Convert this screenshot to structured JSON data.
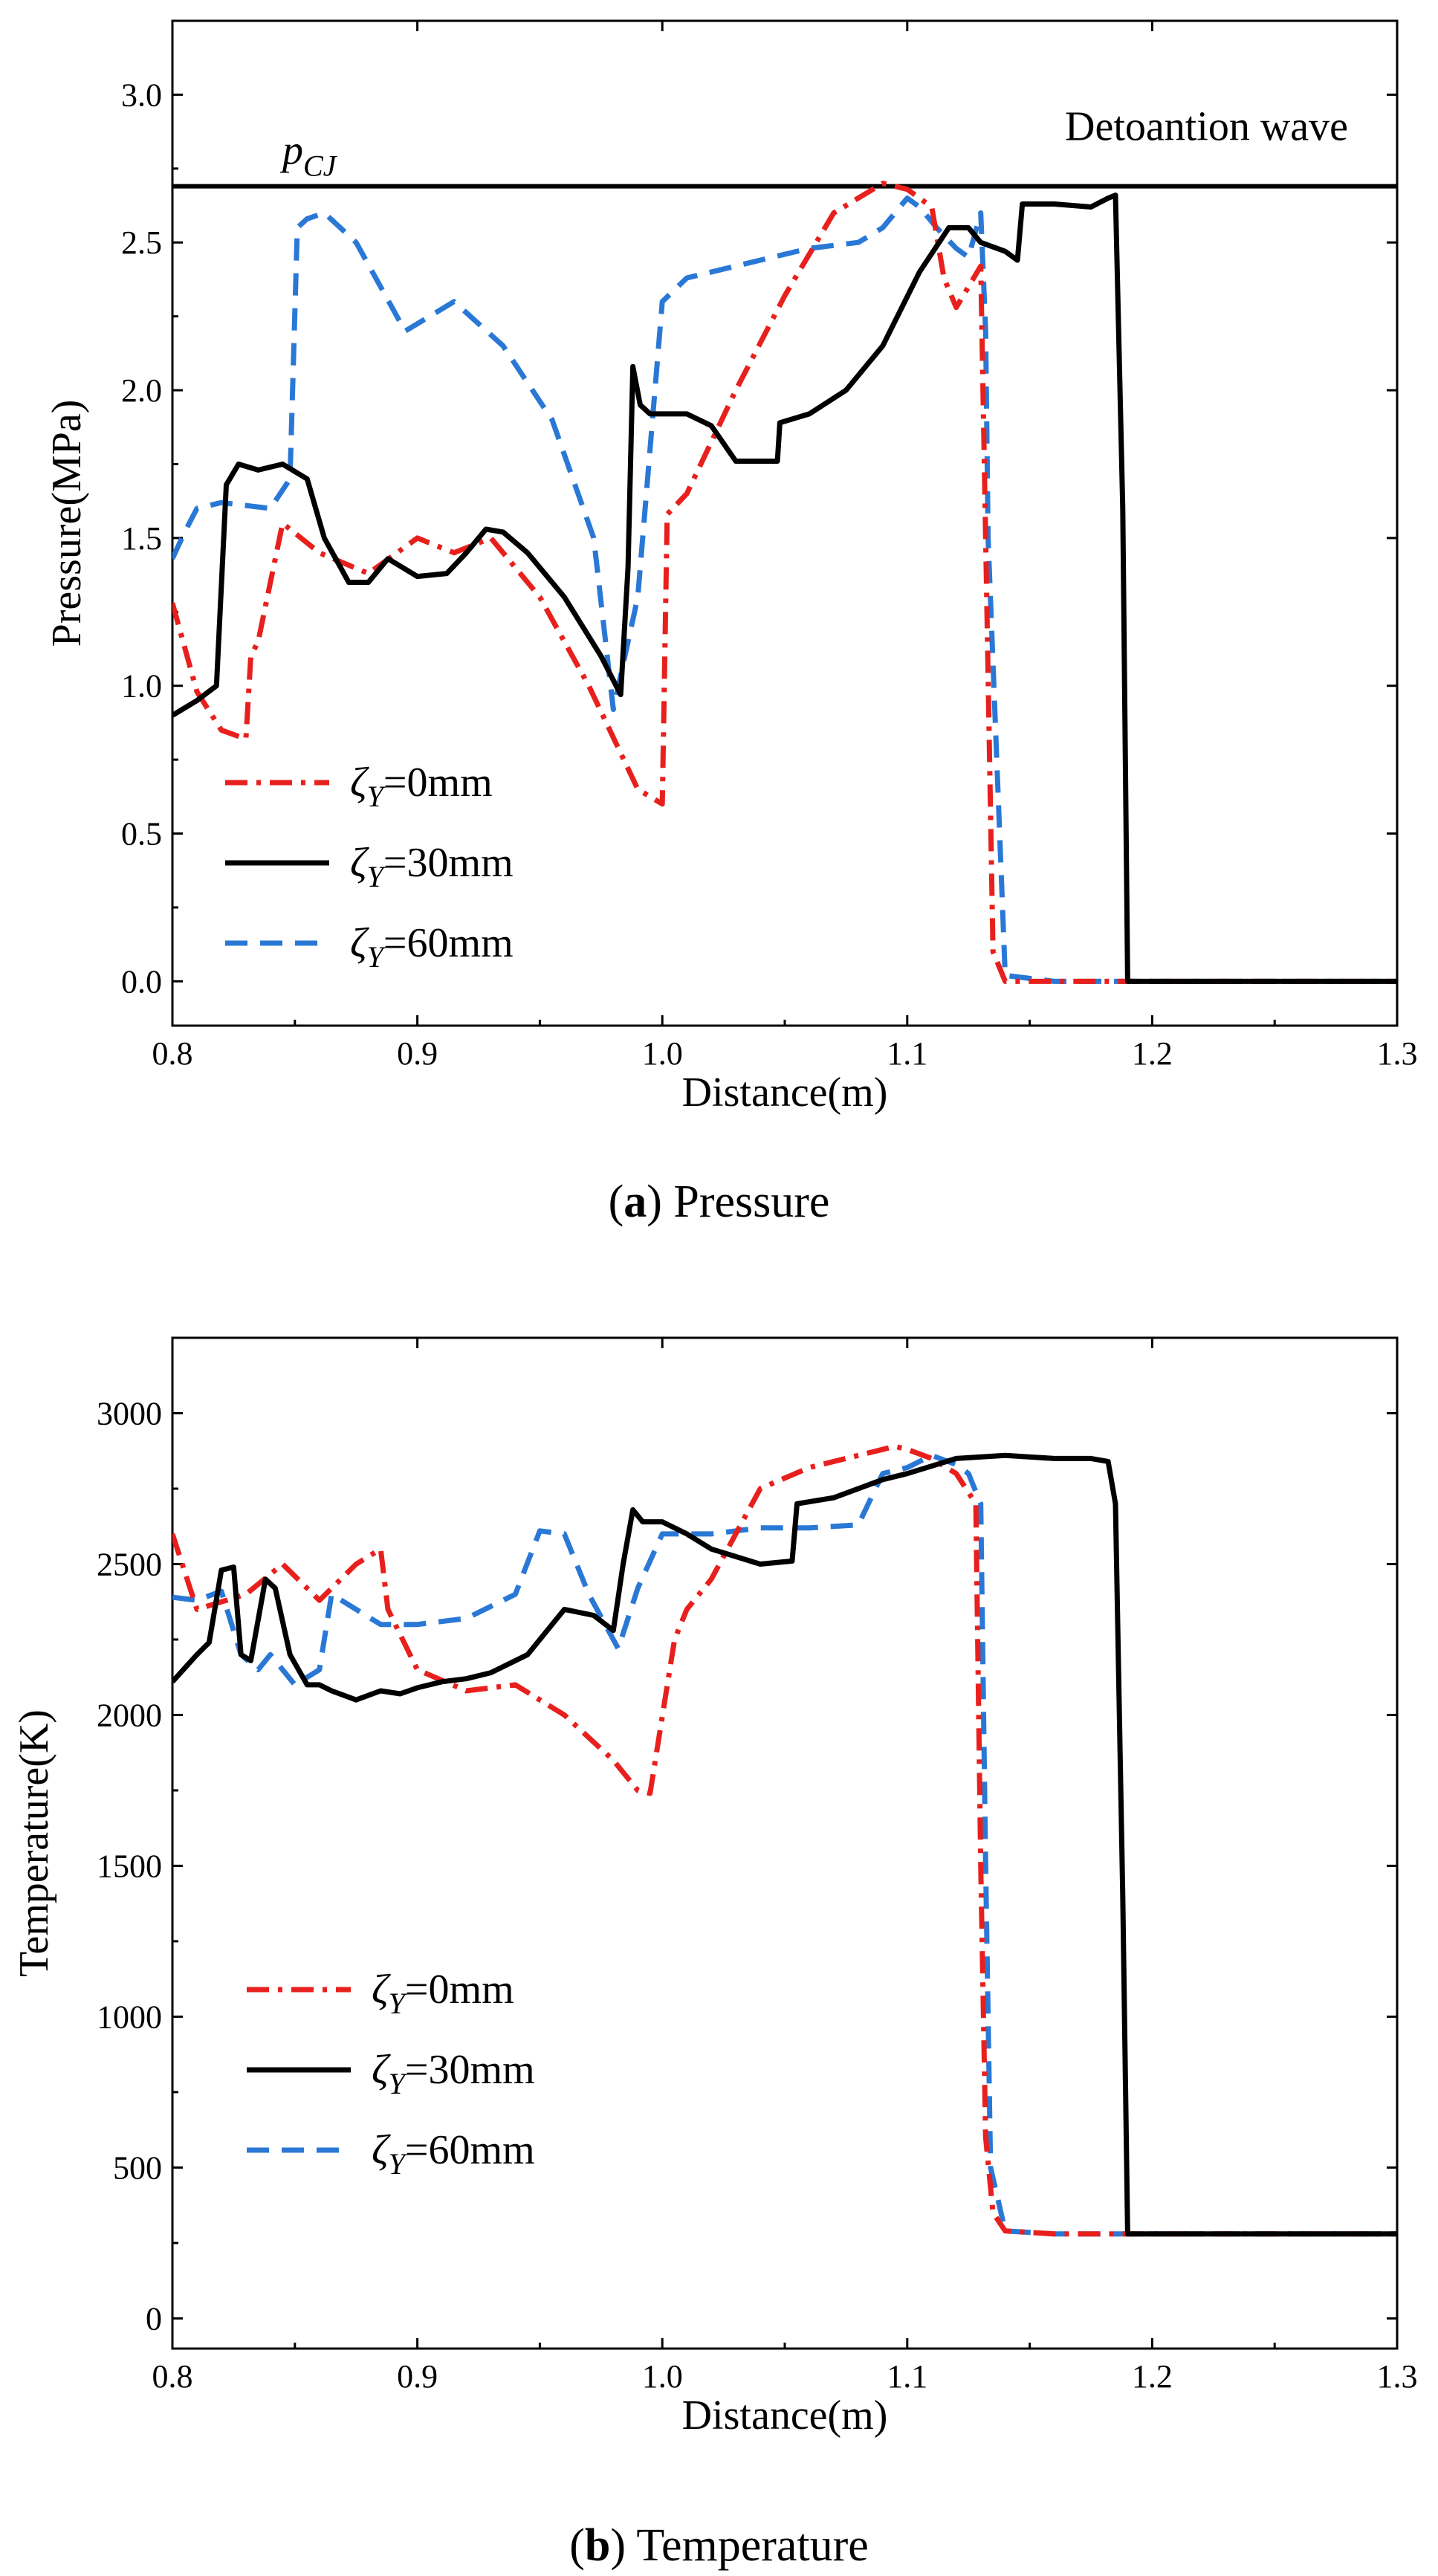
{
  "colors": {
    "red": "#e8201d",
    "black": "#000000",
    "blue": "#2a78d6"
  },
  "chart_data": [
    {
      "type": "line",
      "caption_letter": "a",
      "caption_text": ") Pressure",
      "xlabel": "Distance(m)",
      "ylabel": "Pressure(MPa)",
      "xlim": [
        0.8,
        1.3
      ],
      "ylim": [
        -0.15,
        3.25
      ],
      "xticks": [
        0.8,
        0.9,
        1.0,
        1.1,
        1.2,
        1.3
      ],
      "xtick_labels": [
        "0.8",
        "0.9",
        "1.0",
        "1.1",
        "1.2",
        "1.3"
      ],
      "yticks": [
        0.0,
        0.5,
        1.0,
        1.5,
        2.0,
        2.5,
        3.0
      ],
      "ytick_labels": [
        "0.0",
        "0.5",
        "1.0",
        "1.5",
        "2.0",
        "2.5",
        "3.0"
      ],
      "reference_line": {
        "y": 2.69,
        "label_main": "p",
        "label_sub": "CJ",
        "annotation": "Detoantion wave"
      },
      "legend": {
        "position": "bottom-left",
        "entries": [
          {
            "symbol": "ζ",
            "sub": "Y",
            "text": "=0mm",
            "style": "dashdot",
            "color": "#e8201d"
          },
          {
            "symbol": "ζ",
            "sub": "Y",
            "text": "=30mm",
            "style": "solid",
            "color": "#000000"
          },
          {
            "symbol": "ζ",
            "sub": "Y",
            "text": "=60mm",
            "style": "dash",
            "color": "#2a78d6"
          }
        ]
      },
      "series": [
        {
          "name": "ζY=0mm",
          "style": "dashdot",
          "color": "#e8201d",
          "x": [
            0.8,
            0.81,
            0.82,
            0.83,
            0.832,
            0.835,
            0.845,
            0.86,
            0.88,
            0.9,
            0.915,
            0.93,
            0.95,
            0.97,
            0.99,
            1.0,
            1.002,
            1.01,
            1.03,
            1.05,
            1.07,
            1.09,
            1.1,
            1.11,
            1.115,
            1.12,
            1.13,
            1.132,
            1.135,
            1.14,
            1.16,
            1.3
          ],
          "y": [
            1.28,
            0.98,
            0.85,
            0.82,
            1.1,
            1.15,
            1.55,
            1.45,
            1.38,
            1.5,
            1.45,
            1.5,
            1.3,
            1.0,
            0.65,
            0.6,
            1.58,
            1.65,
            2.0,
            2.32,
            2.6,
            2.7,
            2.68,
            2.62,
            2.38,
            2.28,
            2.42,
            1.5,
            0.1,
            0.0,
            0.0,
            0.0
          ]
        },
        {
          "name": "ζY=30mm",
          "style": "solid",
          "color": "#000000",
          "x": [
            0.8,
            0.81,
            0.818,
            0.822,
            0.827,
            0.835,
            0.845,
            0.855,
            0.862,
            0.872,
            0.88,
            0.888,
            0.9,
            0.912,
            0.92,
            0.928,
            0.935,
            0.945,
            0.96,
            0.975,
            0.983,
            0.986,
            0.988,
            0.991,
            0.995,
            1.002,
            1.01,
            1.02,
            1.03,
            1.047,
            1.048,
            1.06,
            1.075,
            1.09,
            1.105,
            1.117,
            1.125,
            1.13,
            1.14,
            1.145,
            1.147,
            1.16,
            1.175,
            1.182,
            1.185,
            1.188,
            1.19,
            1.3
          ],
          "y": [
            0.9,
            0.95,
            1.0,
            1.68,
            1.75,
            1.73,
            1.75,
            1.7,
            1.5,
            1.35,
            1.35,
            1.43,
            1.37,
            1.38,
            1.45,
            1.53,
            1.52,
            1.45,
            1.3,
            1.1,
            0.97,
            1.4,
            2.08,
            1.95,
            1.92,
            1.92,
            1.92,
            1.88,
            1.76,
            1.76,
            1.89,
            1.92,
            2.0,
            2.15,
            2.4,
            2.55,
            2.55,
            2.5,
            2.47,
            2.44,
            2.63,
            2.63,
            2.62,
            2.65,
            2.66,
            1.6,
            0.0,
            0.0
          ]
        },
        {
          "name": "ζY=60mm",
          "style": "dash",
          "color": "#2a78d6",
          "x": [
            0.8,
            0.805,
            0.81,
            0.82,
            0.84,
            0.848,
            0.851,
            0.855,
            0.862,
            0.875,
            0.895,
            0.915,
            0.935,
            0.955,
            0.972,
            0.98,
            0.99,
            1.0,
            1.01,
            1.03,
            1.06,
            1.08,
            1.09,
            1.1,
            1.105,
            1.112,
            1.12,
            1.125,
            1.13,
            1.132,
            1.133,
            1.14,
            1.16,
            1.3
          ],
          "y": [
            1.43,
            1.52,
            1.6,
            1.62,
            1.6,
            1.7,
            2.55,
            2.58,
            2.6,
            2.5,
            2.2,
            2.3,
            2.15,
            1.9,
            1.5,
            0.92,
            1.3,
            2.3,
            2.38,
            2.42,
            2.48,
            2.5,
            2.55,
            2.65,
            2.62,
            2.55,
            2.48,
            2.45,
            2.6,
            2.2,
            1.5,
            0.02,
            0.0,
            0.0
          ]
        }
      ]
    },
    {
      "type": "line",
      "caption_letter": "b",
      "caption_text": ") Temperature",
      "xlabel": "Distance(m)",
      "ylabel": "Temperature(K)",
      "xlim": [
        0.8,
        1.3
      ],
      "ylim": [
        -100,
        3250
      ],
      "xticks": [
        0.8,
        0.9,
        1.0,
        1.1,
        1.2,
        1.3
      ],
      "xtick_labels": [
        "0.8",
        "0.9",
        "1.0",
        "1.1",
        "1.2",
        "1.3"
      ],
      "yticks": [
        0,
        500,
        1000,
        1500,
        2000,
        2500,
        3000
      ],
      "ytick_labels": [
        "0",
        "500",
        "1000",
        "1500",
        "2000",
        "2500",
        "3000"
      ],
      "legend": {
        "position": "bottom-left",
        "entries": [
          {
            "symbol": "ζ",
            "sub": "Y",
            "text": "=0mm",
            "style": "dashdot",
            "color": "#e8201d"
          },
          {
            "symbol": "ζ",
            "sub": "Y",
            "text": "=30mm",
            "style": "solid",
            "color": "#000000"
          },
          {
            "symbol": "ζ",
            "sub": "Y",
            "text": "=60mm",
            "style": "dash",
            "color": "#2a78d6"
          }
        ]
      },
      "series": [
        {
          "name": "ζY=0mm",
          "style": "dashdot",
          "color": "#e8201d",
          "x": [
            0.8,
            0.81,
            0.83,
            0.845,
            0.86,
            0.875,
            0.885,
            0.888,
            0.9,
            0.92,
            0.94,
            0.96,
            0.98,
            0.99,
            0.995,
            1.005,
            1.01,
            1.02,
            1.04,
            1.06,
            1.08,
            1.095,
            1.1,
            1.11,
            1.12,
            1.128,
            1.13,
            1.132,
            1.135,
            1.14,
            1.16,
            1.3
          ],
          "y": [
            2600,
            2350,
            2400,
            2500,
            2380,
            2500,
            2550,
            2350,
            2150,
            2080,
            2100,
            2000,
            1850,
            1750,
            1740,
            2250,
            2350,
            2450,
            2750,
            2820,
            2860,
            2890,
            2880,
            2850,
            2800,
            2700,
            1500,
            600,
            350,
            290,
            280,
            280
          ]
        },
        {
          "name": "ζY=30mm",
          "style": "solid",
          "color": "#000000",
          "x": [
            0.8,
            0.81,
            0.815,
            0.82,
            0.825,
            0.828,
            0.832,
            0.838,
            0.842,
            0.848,
            0.855,
            0.86,
            0.865,
            0.875,
            0.885,
            0.893,
            0.9,
            0.91,
            0.92,
            0.93,
            0.945,
            0.96,
            0.972,
            0.98,
            0.984,
            0.988,
            0.992,
            1.0,
            1.01,
            1.02,
            1.04,
            1.053,
            1.055,
            1.07,
            1.09,
            1.1,
            1.12,
            1.14,
            1.16,
            1.175,
            1.182,
            1.185,
            1.188,
            1.19,
            1.3
          ],
          "y": [
            2110,
            2200,
            2240,
            2480,
            2490,
            2200,
            2180,
            2450,
            2420,
            2200,
            2100,
            2100,
            2080,
            2050,
            2080,
            2070,
            2090,
            2110,
            2120,
            2140,
            2200,
            2350,
            2330,
            2280,
            2500,
            2680,
            2640,
            2640,
            2600,
            2550,
            2500,
            2510,
            2700,
            2720,
            2780,
            2800,
            2850,
            2860,
            2850,
            2850,
            2840,
            2700,
            1400,
            280,
            280
          ]
        },
        {
          "name": "ζY=60mm",
          "style": "dash",
          "color": "#2a78d6",
          "x": [
            0.8,
            0.81,
            0.82,
            0.828,
            0.835,
            0.84,
            0.85,
            0.86,
            0.865,
            0.875,
            0.885,
            0.9,
            0.92,
            0.94,
            0.95,
            0.96,
            0.97,
            0.982,
            0.99,
            1.0,
            1.02,
            1.04,
            1.06,
            1.08,
            1.09,
            1.1,
            1.11,
            1.12,
            1.125,
            1.13,
            1.132,
            1.134,
            1.14,
            1.16,
            1.3
          ],
          "y": [
            2390,
            2380,
            2410,
            2200,
            2150,
            2200,
            2100,
            2150,
            2400,
            2350,
            2300,
            2300,
            2320,
            2400,
            2610,
            2600,
            2400,
            2220,
            2420,
            2600,
            2600,
            2620,
            2620,
            2630,
            2800,
            2820,
            2860,
            2830,
            2800,
            2700,
            1500,
            500,
            290,
            280,
            280
          ]
        }
      ]
    }
  ]
}
